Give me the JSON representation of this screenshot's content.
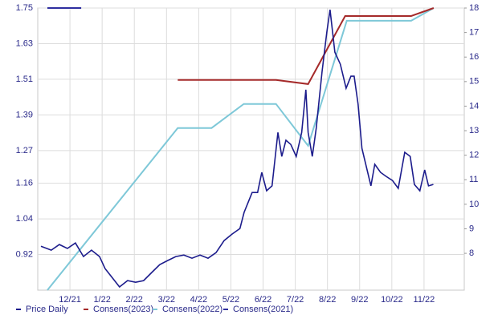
{
  "chart_data": {
    "type": "line",
    "ylim": [
      0.8,
      1.75
    ],
    "yticks": [
      {
        "value": 0.92,
        "label": "0.92"
      },
      1.04,
      1.16,
      1.27,
      1.39,
      1.51,
      1.63,
      1.75
    ],
    "y2lim": [
      6.5,
      18
    ],
    "y2ticks": [
      8,
      9,
      10,
      11,
      12,
      13,
      14,
      15,
      16,
      17,
      18
    ],
    "xlim": [
      0,
      13.25
    ],
    "xticks": [
      {
        "value": 1,
        "label": "12/21"
      },
      {
        "value": 2,
        "label": "1/22"
      },
      {
        "value": 3,
        "label": "2/22"
      },
      {
        "value": 4,
        "label": "3/22"
      },
      {
        "value": 5,
        "label": "4/22"
      },
      {
        "value": 6,
        "label": "5/22"
      },
      {
        "value": 7,
        "label": "6/22"
      },
      {
        "value": 8,
        "label": "7/22"
      },
      {
        "value": 9,
        "label": "8/22"
      },
      {
        "value": 10,
        "label": "9/22"
      },
      {
        "value": 11,
        "label": "10/22"
      },
      {
        "value": 12,
        "label": "11/22"
      }
    ],
    "grid": true,
    "legend": "bottom",
    "series": [
      {
        "name": "Price Daily",
        "color": "#1c1c8c",
        "axis": "y2",
        "x": [
          0.1,
          0.42,
          0.67,
          0.92,
          1.17,
          1.42,
          1.67,
          1.92,
          2.09,
          2.29,
          2.54,
          2.79,
          3.04,
          3.29,
          3.54,
          3.79,
          4.04,
          4.29,
          4.54,
          4.79,
          5.04,
          5.29,
          5.54,
          5.79,
          6.03,
          6.28,
          6.41,
          6.66,
          6.83,
          6.96,
          7.11,
          7.28,
          7.46,
          7.58,
          7.71,
          7.86,
          8.03,
          8.2,
          8.33,
          8.4,
          8.53,
          8.65,
          8.83,
          8.98,
          9.08,
          9.23,
          9.4,
          9.58,
          9.73,
          9.83,
          9.95,
          10.07,
          10.22,
          10.35,
          10.47,
          10.65,
          10.82,
          11.02,
          11.2,
          11.4,
          11.57,
          11.7,
          11.87,
          12.02,
          12.14,
          12.29
        ],
        "values": [
          8.29,
          8.13,
          8.36,
          8.2,
          8.42,
          7.87,
          8.13,
          7.87,
          7.38,
          7.05,
          6.63,
          6.89,
          6.82,
          6.89,
          7.22,
          7.54,
          7.71,
          7.87,
          7.93,
          7.8,
          7.93,
          7.8,
          8.03,
          8.52,
          8.78,
          9.01,
          9.67,
          10.48,
          10.48,
          11.3,
          10.55,
          10.75,
          12.93,
          11.95,
          12.61,
          12.44,
          11.95,
          12.93,
          14.67,
          12.93,
          11.95,
          13.1,
          15.39,
          17.02,
          17.93,
          16.2,
          15.71,
          14.73,
          15.22,
          15.22,
          14.08,
          12.28,
          11.46,
          10.75,
          11.63,
          11.3,
          11.14,
          10.97,
          10.65,
          12.12,
          11.95,
          10.81,
          10.55,
          11.4,
          10.75,
          10.81
        ]
      },
      {
        "name": "Consens(2023)",
        "color": "#a52a2a",
        "x": [
          4.35,
          7.4,
          8.4,
          9.55,
          11.6,
          12.3
        ],
        "values": [
          1.508,
          1.508,
          1.494,
          1.723,
          1.723,
          1.75
        ]
      },
      {
        "name": "Consens(2022)",
        "color": "#7ec8d8",
        "x": [
          0.3,
          4.35,
          5.4,
          6.4,
          7.4,
          8.4,
          9.6,
          11.6,
          12.3
        ],
        "values": [
          0.8,
          1.346,
          1.346,
          1.427,
          1.427,
          1.286,
          1.707,
          1.707,
          1.75
        ]
      },
      {
        "name": "Consens(2021)",
        "color": "#2e2ea0",
        "x": [
          0.3,
          1.35
        ],
        "values": [
          1.75,
          1.75
        ]
      }
    ]
  }
}
